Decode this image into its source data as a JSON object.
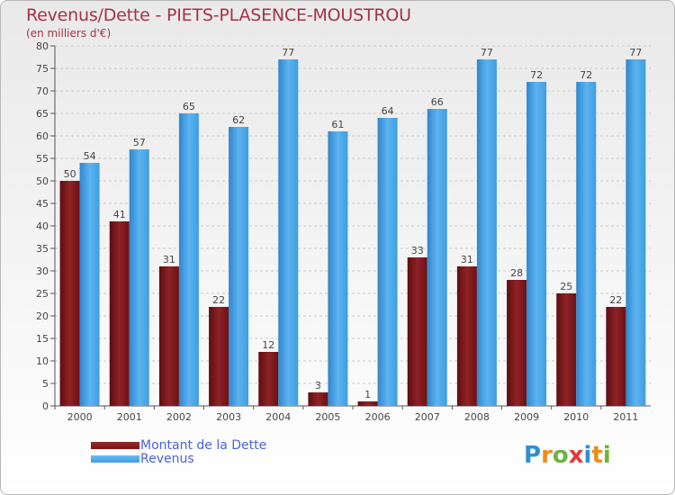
{
  "title": "Revenus/Dette - PIETS-PLASENCE-MOUSTROU",
  "subtitle": "(en milliers d'€)",
  "legend": {
    "debt_label": "Montant de la Dette",
    "revenue_label": "Revenus"
  },
  "logo_text": "Proxiti",
  "colors": {
    "debt": "#7a1416",
    "revenue": "#3d9be3",
    "text": "#a33346",
    "legend_text": "#4a63d6"
  },
  "chart_data": {
    "type": "bar",
    "title": "Revenus/Dette - PIETS-PLASENCE-MOUSTROU",
    "ylabel": "(en milliers d'€)",
    "xlabel": "",
    "categories": [
      "2000",
      "2001",
      "2002",
      "2003",
      "2004",
      "2005",
      "2006",
      "2007",
      "2008",
      "2009",
      "2010",
      "2011"
    ],
    "series": [
      {
        "name": "Montant de la Dette",
        "values": [
          50,
          41,
          31,
          22,
          12,
          3,
          1,
          33,
          31,
          28,
          25,
          22
        ]
      },
      {
        "name": "Revenus",
        "values": [
          54,
          57,
          65,
          62,
          77,
          61,
          64,
          66,
          77,
          72,
          72,
          77
        ]
      }
    ],
    "ylim": [
      0,
      80
    ],
    "yticks": [
      0,
      5,
      10,
      15,
      20,
      25,
      30,
      35,
      40,
      45,
      50,
      55,
      60,
      65,
      70,
      75,
      80
    ],
    "grid": true,
    "legend_position": "bottom-left"
  }
}
